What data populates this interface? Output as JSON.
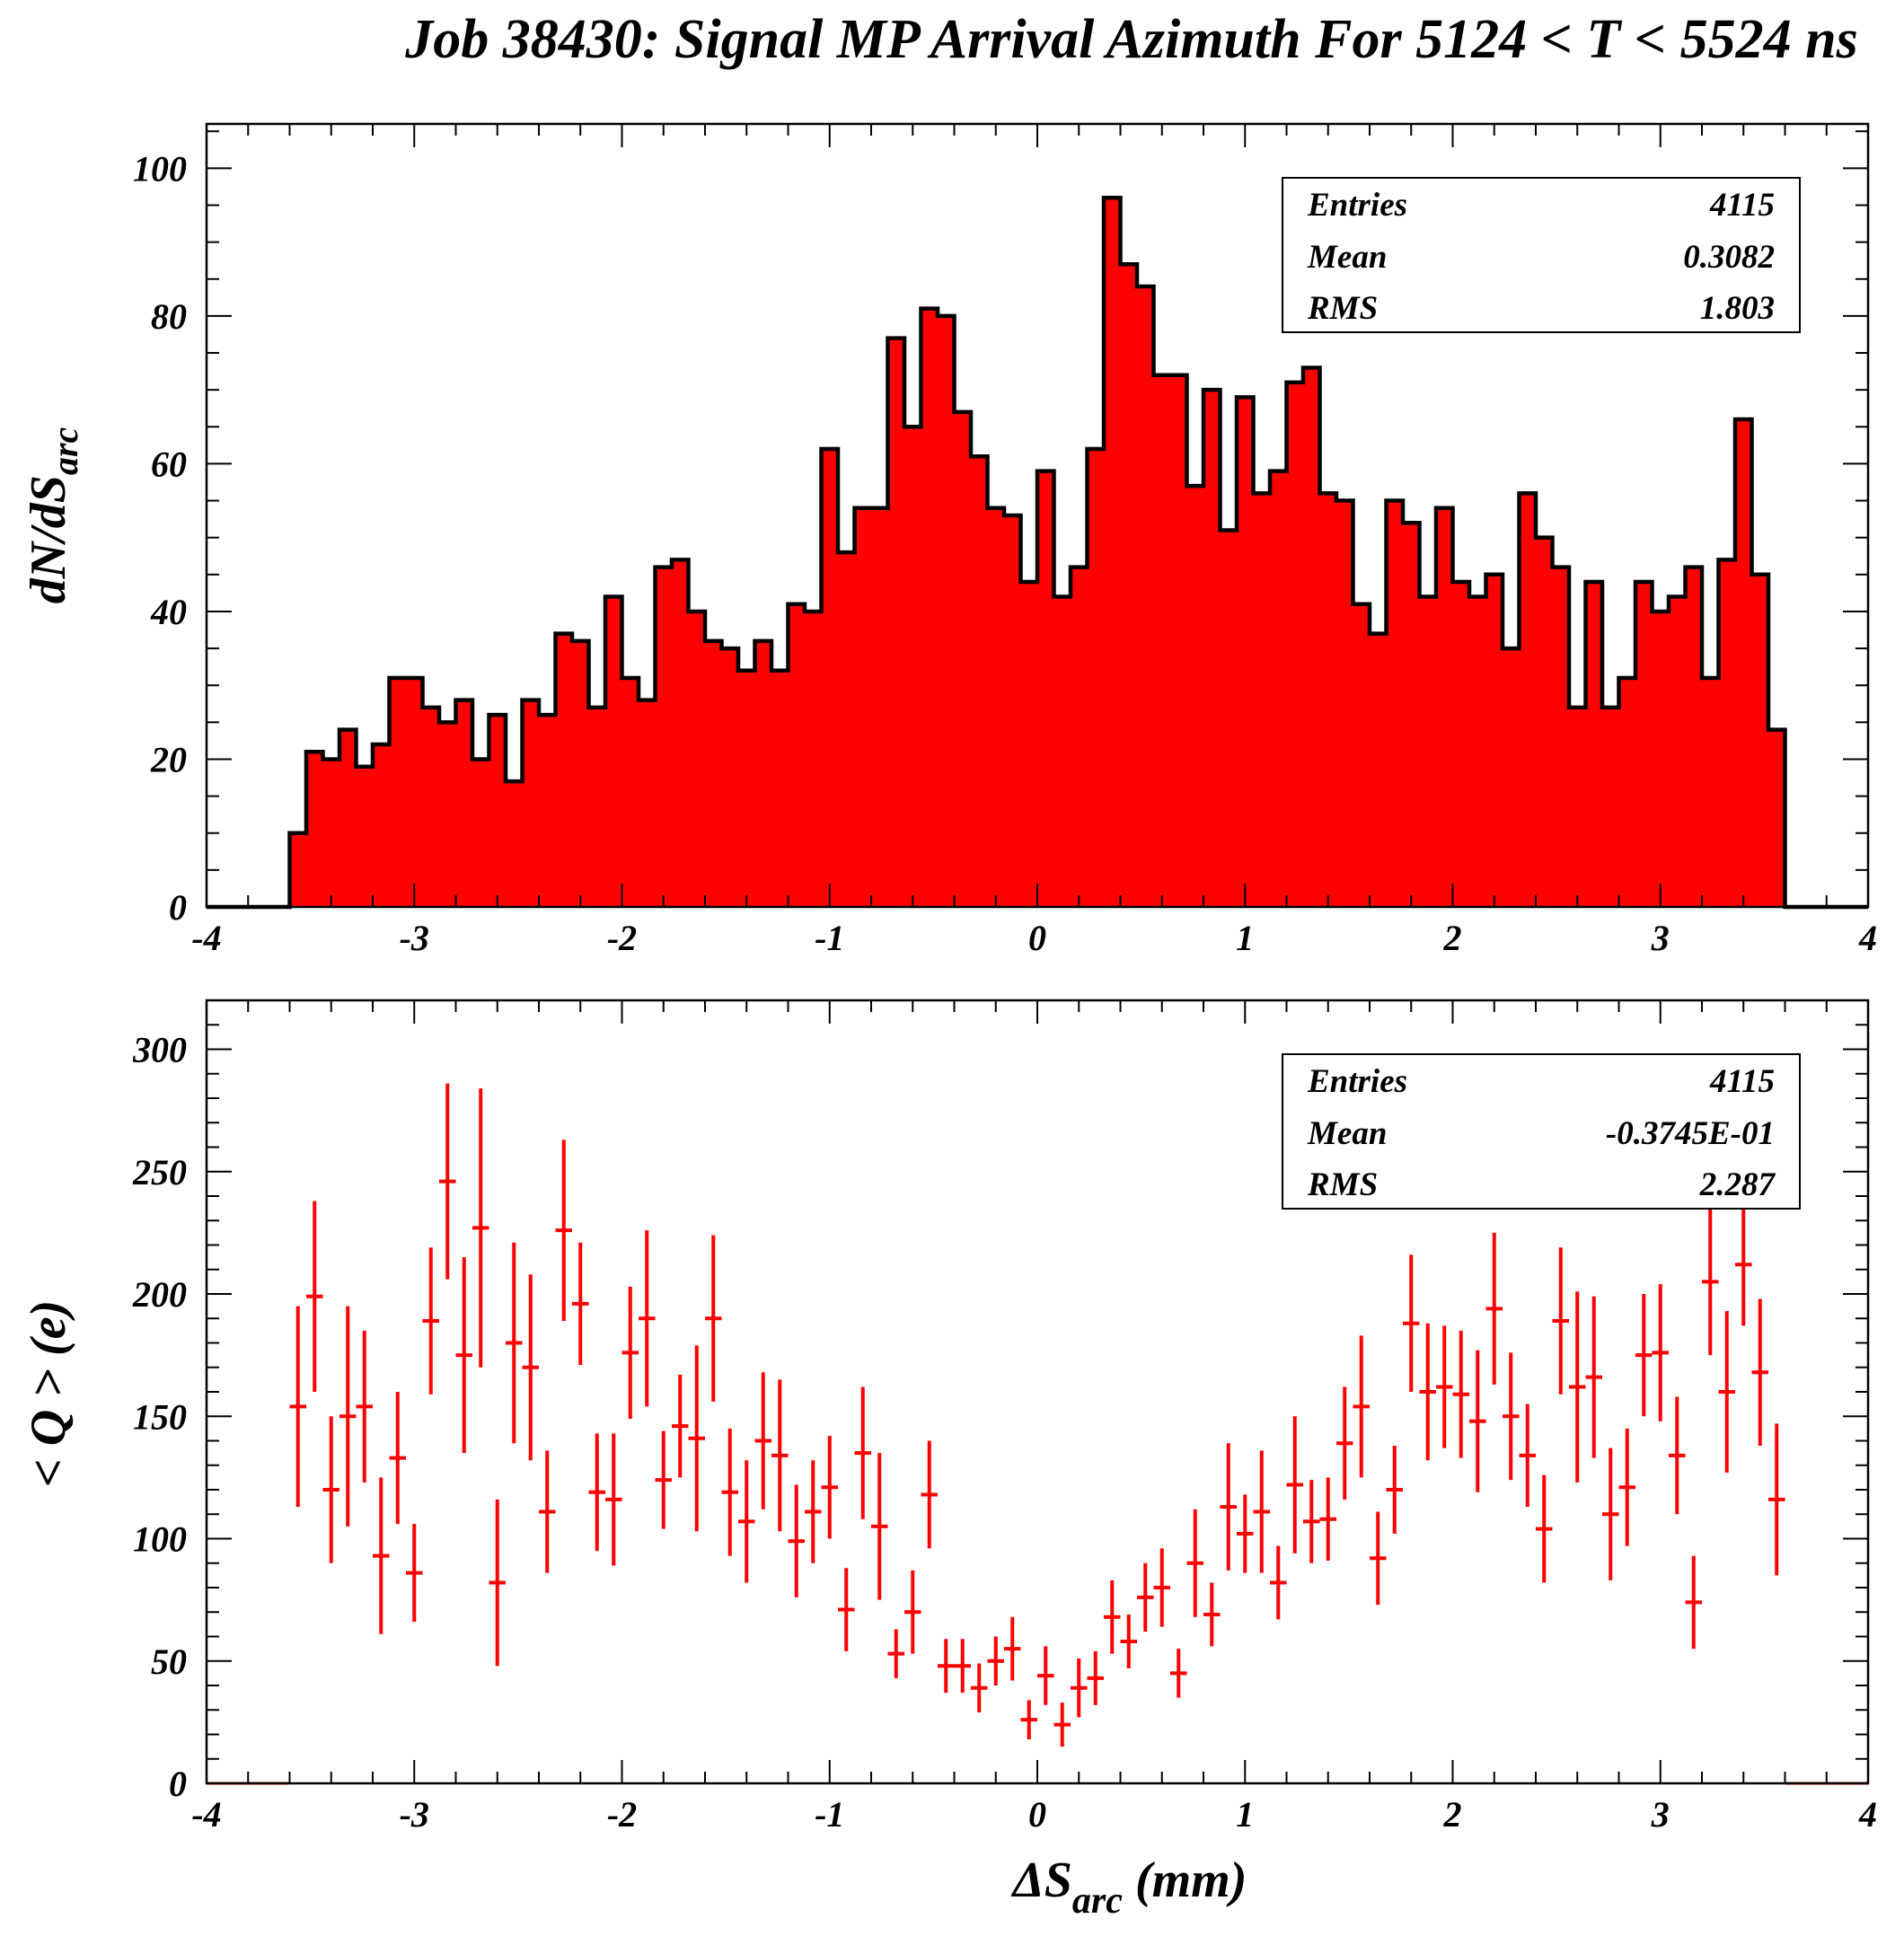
{
  "title": "Job 38430: Signal MP Arrival Azimuth For 5124 < T < 5524 ns",
  "colors": {
    "fill": "#ff0000",
    "outline": "#000000",
    "errorbar": "#ff0000"
  },
  "chart_data": [
    {
      "type": "histogram",
      "ylabel_main": "dN/dS",
      "ylabel_sub": "arc",
      "xlim": [
        -4,
        4
      ],
      "ylim": [
        0,
        106
      ],
      "xticks": [
        "-4",
        "-3",
        "-2",
        "-1",
        "0",
        "1",
        "2",
        "3",
        "4"
      ],
      "yticks": [
        "0",
        "20",
        "40",
        "60",
        "80",
        "100"
      ],
      "bin_start": -3.6,
      "bin_width": 0.08,
      "values": [
        10,
        21,
        20,
        24,
        19,
        22,
        31,
        31,
        27,
        25,
        28,
        20,
        26,
        17,
        28,
        26,
        37,
        36,
        27,
        42,
        31,
        28,
        46,
        47,
        40,
        36,
        35,
        32,
        36,
        32,
        41,
        40,
        62,
        48,
        54,
        54,
        77,
        65,
        81,
        80,
        67,
        61,
        54,
        53,
        44,
        59,
        42,
        46,
        62,
        96,
        87,
        84,
        72,
        72,
        57,
        70,
        51,
        69,
        56,
        59,
        71,
        73,
        56,
        55,
        41,
        37,
        55,
        52,
        42,
        54,
        44,
        42,
        45,
        35,
        56,
        50,
        46,
        27,
        44,
        27,
        31,
        44,
        40,
        42,
        46,
        31,
        47,
        66,
        45,
        24
      ],
      "stats": {
        "entries_label": "Entries",
        "entries": "4115",
        "mean_label": "Mean",
        "mean": "0.3082",
        "rms_label": "RMS",
        "rms": "1.803"
      }
    },
    {
      "type": "scatter",
      "ylabel": "< Q > (e)",
      "xlabel_main": "ΔS",
      "xlabel_sub": "arc",
      "xlabel_unit": " (mm)",
      "xlim": [
        -4,
        4
      ],
      "ylim": [
        0,
        320
      ],
      "xticks": [
        "-4",
        "-3",
        "-2",
        "-1",
        "0",
        "1",
        "2",
        "3",
        "4"
      ],
      "yticks": [
        "0",
        "50",
        "100",
        "150",
        "200",
        "250",
        "300"
      ],
      "points": [
        [
          -3.56,
          154,
          41
        ],
        [
          -3.48,
          199,
          39
        ],
        [
          -3.4,
          120,
          30
        ],
        [
          -3.32,
          150,
          45
        ],
        [
          -3.24,
          154,
          31
        ],
        [
          -3.16,
          93,
          32
        ],
        [
          -3.08,
          133,
          27
        ],
        [
          -3.0,
          86,
          20
        ],
        [
          -2.92,
          189,
          30
        ],
        [
          -2.84,
          246,
          40
        ],
        [
          -2.76,
          175,
          40
        ],
        [
          -2.68,
          227,
          57
        ],
        [
          -2.6,
          82,
          34
        ],
        [
          -2.52,
          180,
          41
        ],
        [
          -2.44,
          170,
          38
        ],
        [
          -2.36,
          111,
          25
        ],
        [
          -2.28,
          226,
          37
        ],
        [
          -2.2,
          196,
          25
        ],
        [
          -2.12,
          119,
          24
        ],
        [
          -2.04,
          116,
          27
        ],
        [
          -1.96,
          176,
          27
        ],
        [
          -1.88,
          190,
          36
        ],
        [
          -1.8,
          124,
          20
        ],
        [
          -1.72,
          146,
          21
        ],
        [
          -1.64,
          141,
          38
        ],
        [
          -1.56,
          190,
          34
        ],
        [
          -1.48,
          119,
          26
        ],
        [
          -1.4,
          107,
          25
        ],
        [
          -1.32,
          140,
          28
        ],
        [
          -1.24,
          134,
          31
        ],
        [
          -1.16,
          99,
          23
        ],
        [
          -1.08,
          111,
          21
        ],
        [
          -1.0,
          121,
          21
        ],
        [
          -0.92,
          71,
          17
        ],
        [
          -0.84,
          135,
          27
        ],
        [
          -0.76,
          105,
          30
        ],
        [
          -0.68,
          53,
          10
        ],
        [
          -0.6,
          70,
          17
        ],
        [
          -0.52,
          118,
          22
        ],
        [
          -0.44,
          48,
          11
        ],
        [
          -0.36,
          48,
          11
        ],
        [
          -0.28,
          39,
          10
        ],
        [
          -0.2,
          50,
          10
        ],
        [
          -0.12,
          55,
          13
        ],
        [
          -0.04,
          26,
          8
        ],
        [
          0.04,
          44,
          12
        ],
        [
          0.12,
          24,
          9
        ],
        [
          0.2,
          39,
          12
        ],
        [
          0.28,
          43,
          11
        ],
        [
          0.36,
          68,
          15
        ],
        [
          0.44,
          58,
          11
        ],
        [
          0.52,
          76,
          14
        ],
        [
          0.6,
          80,
          16
        ],
        [
          0.68,
          45,
          10
        ],
        [
          0.76,
          90,
          22
        ],
        [
          0.84,
          69,
          13
        ],
        [
          0.92,
          113,
          26
        ],
        [
          1.0,
          102,
          16
        ],
        [
          1.08,
          111,
          25
        ],
        [
          1.16,
          82,
          15
        ],
        [
          1.24,
          122,
          28
        ],
        [
          1.32,
          107,
          17
        ],
        [
          1.4,
          108,
          17
        ],
        [
          1.48,
          139,
          23
        ],
        [
          1.56,
          154,
          29
        ],
        [
          1.64,
          92,
          19
        ],
        [
          1.72,
          120,
          18
        ],
        [
          1.8,
          188,
          28
        ],
        [
          1.88,
          160,
          28
        ],
        [
          1.96,
          162,
          25
        ],
        [
          2.04,
          159,
          26
        ],
        [
          2.12,
          148,
          29
        ],
        [
          2.2,
          194,
          31
        ],
        [
          2.28,
          150,
          26
        ],
        [
          2.36,
          134,
          21
        ],
        [
          2.44,
          104,
          22
        ],
        [
          2.52,
          189,
          30
        ],
        [
          2.6,
          162,
          39
        ],
        [
          2.68,
          166,
          33
        ],
        [
          2.76,
          110,
          27
        ],
        [
          2.84,
          121,
          24
        ],
        [
          2.92,
          175,
          25
        ],
        [
          3.0,
          176,
          28
        ],
        [
          3.08,
          134,
          24
        ],
        [
          3.16,
          74,
          19
        ],
        [
          3.24,
          205,
          30
        ],
        [
          3.32,
          160,
          33
        ],
        [
          3.4,
          212,
          25
        ],
        [
          3.48,
          168,
          30
        ],
        [
          3.56,
          116,
          31
        ]
      ],
      "stats": {
        "entries_label": "Entries",
        "entries": "4115",
        "mean_label": "Mean",
        "mean": "-0.3745E-01",
        "rms_label": "RMS",
        "rms": "2.287"
      }
    }
  ]
}
